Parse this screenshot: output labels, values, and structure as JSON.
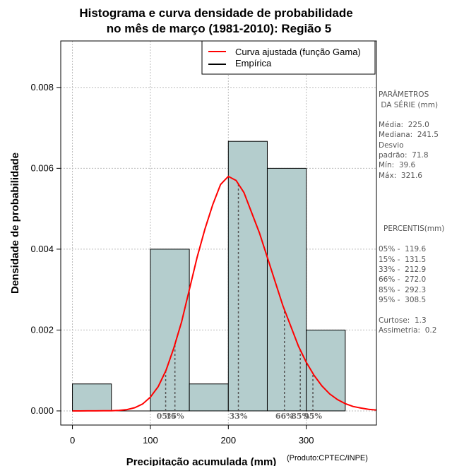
{
  "chart_data": {
    "type": "bar",
    "title": "Histograma e curva densidade de probabilidade",
    "subtitle": "no mês de março (1981-2010): Região 5",
    "xlabel": "Precipitação acumulada (mm)",
    "ylabel": "Densidade de probabilidade",
    "credit": "(Produto:CPTEC/INPE)",
    "xlim": [
      -15,
      390
    ],
    "ylim": [
      -0.00035,
      0.00915
    ],
    "x_ticks": [
      0,
      100,
      200,
      300
    ],
    "y_ticks": [
      0.0,
      0.002,
      0.004,
      0.006,
      0.008
    ],
    "y_tick_labels": [
      "0.000",
      "0.002",
      "0.004",
      "0.006",
      "0.008"
    ],
    "grid": true,
    "bins": [
      {
        "from": 0,
        "to": 50,
        "density": 0.000667
      },
      {
        "from": 50,
        "to": 100,
        "density": 0.0
      },
      {
        "from": 100,
        "to": 150,
        "density": 0.004
      },
      {
        "from": 150,
        "to": 200,
        "density": 0.000667
      },
      {
        "from": 200,
        "to": 250,
        "density": 0.006667
      },
      {
        "from": 250,
        "to": 300,
        "density": 0.006
      },
      {
        "from": 300,
        "to": 350,
        "density": 0.002
      }
    ],
    "fitted_curve": {
      "name": "Curva ajustada (função Gama)",
      "color": "#ff0000",
      "x": [
        0,
        10,
        20,
        30,
        40,
        50,
        60,
        70,
        80,
        90,
        100,
        110,
        120,
        130,
        140,
        150,
        160,
        170,
        180,
        190,
        200,
        210,
        220,
        230,
        240,
        250,
        260,
        270,
        280,
        290,
        300,
        310,
        320,
        330,
        340,
        350,
        360,
        370,
        380,
        390
      ],
      "y": [
        0,
        1e-07,
        3e-07,
        8e-07,
        2e-06,
        5e-06,
        1.3e-05,
        3.3e-05,
        8e-05,
        0.00017,
        0.00034,
        0.0006,
        0.001,
        0.00155,
        0.0022,
        0.003,
        0.0038,
        0.0045,
        0.0051,
        0.0056,
        0.0058,
        0.0057,
        0.0054,
        0.0049,
        0.0044,
        0.0038,
        0.0032,
        0.0026,
        0.0021,
        0.0016,
        0.0012,
        0.00088,
        0.00062,
        0.00042,
        0.00028,
        0.00018,
        0.00011,
        7e-05,
        4e-05,
        2e-05
      ]
    },
    "empirical_legend": "Empírica",
    "series_colors": {
      "bar_fill": "#b4cdcd",
      "bar_stroke": "#000000",
      "curve": "#ff0000",
      "empirical": "#000000",
      "percentile_line": "#555555",
      "grid": "#bbbbbb"
    },
    "percentile_markers": [
      {
        "label": "05%",
        "x": 119.6
      },
      {
        "label": "15%",
        "x": 131.5
      },
      {
        "label": "33%",
        "x": 212.9
      },
      {
        "label": "66%",
        "x": 272.0
      },
      {
        "label": "85%",
        "x": 292.3
      },
      {
        "label": "95%",
        "x": 308.5
      }
    ]
  },
  "side_panel": {
    "params_title_1": "PARÂMETROS",
    "params_title_2": " DA SÉRIE (mm)",
    "media": "Média:  225.0",
    "mediana": "Mediana:  241.5",
    "desvio_1": "Desvio",
    "desvio_2": "padrão:  71.8",
    "min": "Mín:  39.6",
    "max": "Máx:  321.6",
    "percentis_title": "PERCENTIS(mm)",
    "p05": "05% -  119.6",
    "p15": "15% -  131.5",
    "p33": "33% -  212.9",
    "p66": "66% -  272.0",
    "p85": "85% -  292.3",
    "p95": "95% -  308.5",
    "curtose": "Curtose:  1.3",
    "assimetria": "Assimetria:  0.2"
  }
}
